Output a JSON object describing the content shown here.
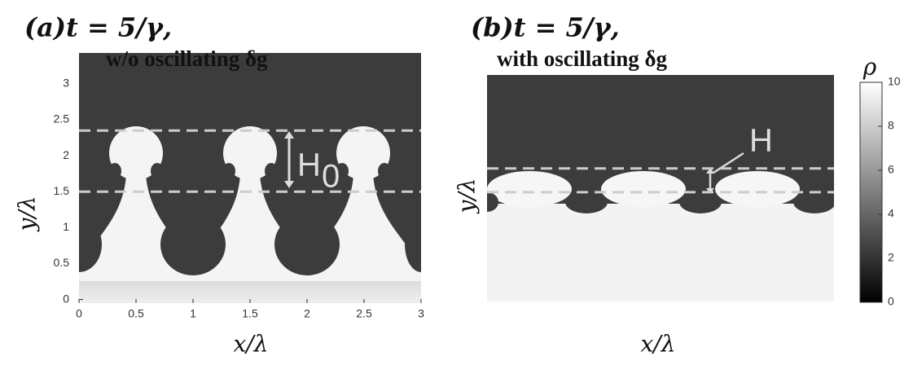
{
  "figure": {
    "panels": [
      {
        "title": "(a)t = 5/γ,",
        "subtitle": "w/o oscillating δg",
        "xlabel": "x/λ",
        "ylabel": "y/λ",
        "xlim": [
          0,
          3
        ],
        "ylim": [
          -0.05,
          3.43
        ],
        "xticks": [
          0,
          0.5,
          1,
          1.5,
          2,
          2.5,
          3
        ],
        "yticks": [
          0,
          0.5,
          1,
          1.5,
          2,
          2.5,
          3
        ],
        "guides": [
          2.35,
          1.5
        ],
        "annotation": "H",
        "annotation_sub": "0"
      },
      {
        "title": "(b)t = 5/γ,",
        "subtitle": "with oscillating δg",
        "xlabel": "x/λ",
        "ylabel": "y/λ",
        "xlim": [
          0,
          3
        ],
        "ylim": [
          -0.03,
          3.12
        ],
        "guides": [
          1.82,
          1.49
        ],
        "annotation": "H"
      }
    ],
    "colorbar": {
      "label": "ρ",
      "lim": [
        0,
        10
      ],
      "ticks": [
        0,
        2,
        4,
        6,
        8,
        10
      ]
    }
  }
}
